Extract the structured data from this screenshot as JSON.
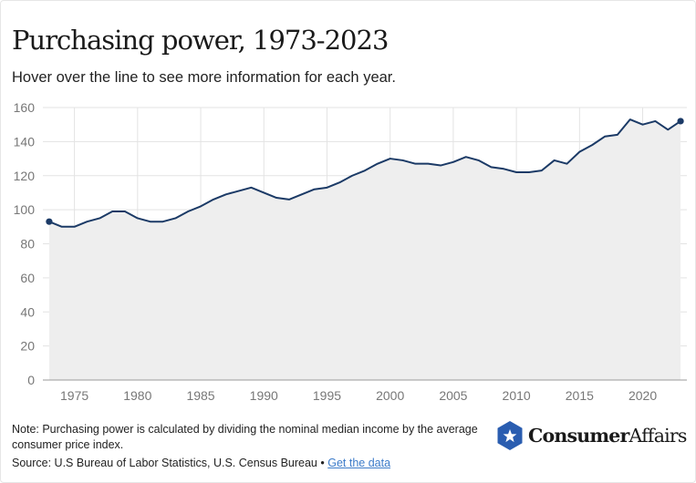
{
  "title": "Purchasing power, 1973-2023",
  "subtitle": "Hover over the line to see more information for each year.",
  "note": "Note: Purchasing power is calculated by dividing the nominal median income by the average consumer price index.",
  "source": {
    "text": "Source: U.S Bureau of Labor Statistics, U.S. Census Bureau •",
    "link_text": "Get the data",
    "link_color": "#3d7cc9"
  },
  "logo": {
    "icon": "hexagon-star-icon",
    "bold_text": "Consumer",
    "light_text": "Affairs",
    "color": "#2a5db0"
  },
  "chart_data": {
    "type": "area",
    "title": "Purchasing power, 1973-2023",
    "xlabel": "",
    "ylabel": "",
    "xlim": [
      1972.5,
      2023.5
    ],
    "ylim": [
      0,
      160
    ],
    "yticks": [
      0,
      20,
      40,
      60,
      80,
      100,
      120,
      140,
      160
    ],
    "xticks": [
      1975,
      1980,
      1985,
      1990,
      1995,
      2000,
      2005,
      2010,
      2015,
      2020
    ],
    "grid": true,
    "legend": "none",
    "line_color": "#1b3a66",
    "fill_color": "#eeeeee",
    "markers_at_endpoints": true,
    "x": [
      1973,
      1974,
      1975,
      1976,
      1977,
      1978,
      1979,
      1980,
      1981,
      1982,
      1983,
      1984,
      1985,
      1986,
      1987,
      1988,
      1989,
      1990,
      1991,
      1992,
      1993,
      1994,
      1995,
      1996,
      1997,
      1998,
      1999,
      2000,
      2001,
      2002,
      2003,
      2004,
      2005,
      2006,
      2007,
      2008,
      2009,
      2010,
      2011,
      2012,
      2013,
      2014,
      2015,
      2016,
      2017,
      2018,
      2019,
      2020,
      2021,
      2022,
      2023
    ],
    "y": [
      93,
      90,
      90,
      93,
      95,
      99,
      99,
      95,
      93,
      93,
      95,
      99,
      102,
      106,
      109,
      111,
      113,
      110,
      107,
      106,
      109,
      112,
      113,
      116,
      120,
      123,
      127,
      130,
      129,
      127,
      127,
      126,
      128,
      131,
      129,
      125,
      124,
      122,
      122,
      123,
      129,
      127,
      134,
      138,
      143,
      144,
      153,
      150,
      152,
      147,
      152
    ]
  }
}
